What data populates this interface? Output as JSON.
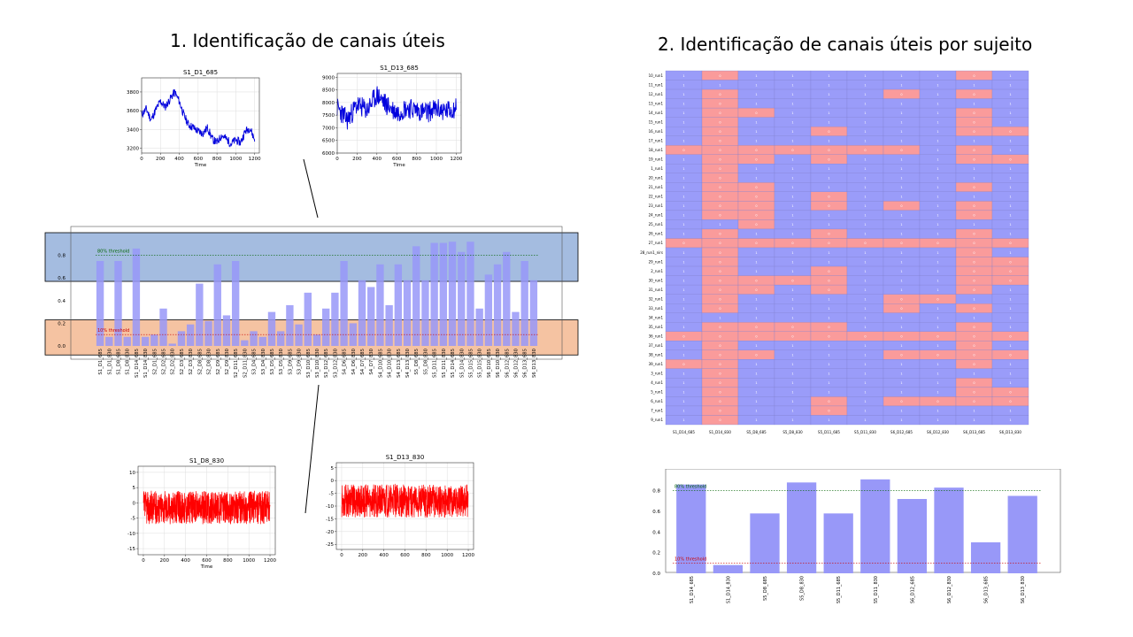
{
  "slide": {
    "left_title": "1. Identificação de canais úteis",
    "right_title": "2. Identificação de canais úteis por sujeito"
  },
  "chart_data": [
    {
      "id": "ts_s1_d1_685",
      "type": "line",
      "title": "S1_D1_685",
      "xlabel": "Time",
      "xlim": [
        0,
        1250
      ],
      "ylim": [
        3150,
        3950
      ],
      "xticks": [
        0,
        200,
        400,
        600,
        800,
        1000,
        1200
      ],
      "yticks": [
        3200,
        3400,
        3600,
        3800
      ],
      "color": "#0000dd",
      "anchors": [
        [
          0,
          3560
        ],
        [
          50,
          3620
        ],
        [
          100,
          3500
        ],
        [
          150,
          3610
        ],
        [
          200,
          3700
        ],
        [
          250,
          3640
        ],
        [
          300,
          3720
        ],
        [
          350,
          3800
        ],
        [
          400,
          3700
        ],
        [
          450,
          3550
        ],
        [
          500,
          3450
        ],
        [
          550,
          3420
        ],
        [
          600,
          3380
        ],
        [
          650,
          3360
        ],
        [
          700,
          3420
        ],
        [
          750,
          3300
        ],
        [
          800,
          3260
        ],
        [
          850,
          3340
        ],
        [
          900,
          3300
        ],
        [
          950,
          3250
        ],
        [
          1000,
          3290
        ],
        [
          1050,
          3260
        ],
        [
          1100,
          3380
        ],
        [
          1150,
          3420
        ],
        [
          1200,
          3290
        ]
      ],
      "noise": 45,
      "points": 300,
      "seed": 11,
      "grid": true
    },
    {
      "id": "ts_s1_d13_685",
      "type": "line",
      "title": "S1_D13_685",
      "xlabel": "Time",
      "xlim": [
        0,
        1250
      ],
      "ylim": [
        6000,
        9150
      ],
      "xticks": [
        0,
        200,
        400,
        600,
        800,
        1000,
        1200
      ],
      "yticks": [
        6000,
        6500,
        7000,
        7500,
        8000,
        8500,
        9000
      ],
      "color": "#0000dd",
      "anchors": [
        [
          0,
          7800
        ],
        [
          100,
          7300
        ],
        [
          200,
          7900
        ],
        [
          300,
          7700
        ],
        [
          400,
          8300
        ],
        [
          500,
          7900
        ],
        [
          600,
          7600
        ],
        [
          700,
          7800
        ],
        [
          800,
          7700
        ],
        [
          900,
          7600
        ],
        [
          1000,
          7750
        ],
        [
          1100,
          7650
        ],
        [
          1200,
          7800
        ]
      ],
      "noise": 420,
      "points": 320,
      "seed": 23,
      "grid": true
    },
    {
      "id": "ts_s1_d8_830",
      "type": "line",
      "title": "S1_D8_830",
      "xlabel": "Time",
      "xlim": [
        -50,
        1250
      ],
      "ylim": [
        -17,
        12
      ],
      "xticks": [
        0,
        200,
        400,
        600,
        800,
        1000,
        1200
      ],
      "yticks": [
        10,
        5,
        0,
        -5,
        -10,
        -15
      ],
      "color": "#ff0000",
      "anchors": [
        [
          0,
          -1.5
        ],
        [
          1200,
          -1.5
        ]
      ],
      "noise": 5.5,
      "points": 900,
      "seed": 37,
      "grid": true
    },
    {
      "id": "ts_s1_d13_830",
      "type": "line",
      "title": "S1_D13_830",
      "xlabel": "",
      "xlim": [
        -50,
        1250
      ],
      "ylim": [
        -27,
        7
      ],
      "xticks": [
        0,
        200,
        400,
        600,
        800,
        1000,
        1200
      ],
      "yticks": [
        5,
        0,
        -5,
        -10,
        -15,
        -20,
        -25
      ],
      "color": "#ff0000",
      "anchors": [
        [
          0,
          -8
        ],
        [
          1200,
          -8
        ]
      ],
      "noise": 6.5,
      "points": 900,
      "seed": 53,
      "grid": true
    },
    {
      "id": "channel_bars",
      "type": "bar",
      "color": "#9898f8",
      "ylim": [
        0,
        1.0
      ],
      "yticks": [
        0.0,
        0.2,
        0.4,
        0.6,
        0.8
      ],
      "thresholds": [
        {
          "label": "80% threshold",
          "value": 0.8,
          "color": "#006400"
        },
        {
          "label": "10% threshold",
          "value": 0.1,
          "color": "#cc0000"
        }
      ],
      "categories": [
        "S1_D1_685",
        "S1_D1_830",
        "S1_D8_685",
        "S1_D8_830",
        "S1_D14_685",
        "S1_D14_830",
        "S2_D1_685",
        "S2_D2_685",
        "S2_D2_830",
        "S2_D3_685",
        "S2_D3_830",
        "S2_D8_685",
        "S2_D8_830",
        "S2_D9_685",
        "S2_D9_830",
        "S2_D11_685",
        "S2_D11_830",
        "S3_D4_685",
        "S3_D4_830",
        "S3_D5_685",
        "S3_D5_830",
        "S3_D9_685",
        "S3_D9_830",
        "S3_D10_685",
        "S3_D10_830",
        "S3_D12_685",
        "S3_D12_830",
        "S4_D6_685",
        "S4_D6_830",
        "S4_D7_685",
        "S4_D7_830",
        "S4_D10_685",
        "S4_D10_830",
        "S4_D13_685",
        "S4_D13_830",
        "S5_D8_685",
        "S5_D8_830",
        "S5_D11_685",
        "S5_D11_830",
        "S5_D14_685",
        "S5_D14_830",
        "S5_D15_685",
        "S5_D15_830",
        "S6_D10_685",
        "S6_D10_830",
        "S6_D12_685",
        "S6_D12_830",
        "S6_D13_685",
        "S6_D13_830"
      ],
      "values": [
        0.75,
        0.08,
        0.75,
        0.08,
        0.86,
        0.08,
        0.1,
        0.33,
        0.02,
        0.13,
        0.19,
        0.55,
        0.22,
        0.72,
        0.27,
        0.75,
        0.05,
        0.13,
        0.08,
        0.3,
        0.13,
        0.36,
        0.19,
        0.47,
        0.1,
        0.33,
        0.47,
        0.75,
        0.2,
        0.58,
        0.52,
        0.72,
        0.36,
        0.72,
        0.58,
        0.88,
        0.58,
        0.91,
        0.91,
        0.92,
        0.83,
        0.92,
        0.33,
        0.63,
        0.72,
        0.83,
        0.3,
        0.75,
        0.58
      ]
    },
    {
      "id": "subject_heatmap",
      "type": "heatmap",
      "colors": {
        "one": "#9a9cf9",
        "zero": "#fa9b9b"
      },
      "rows": [
        "10_run1",
        "11_run1",
        "12_run1",
        "13_run1",
        "14_run1",
        "15_run1",
        "16_run1",
        "17_run1",
        "18_run1",
        "19_run1",
        "1_run1",
        "20_run1",
        "21_run1",
        "22_run1",
        "23_run1",
        "24_run1",
        "25_run1",
        "26_run1",
        "27_run1",
        "28_run1_nirs",
        "29_run1",
        "2_run1",
        "30_run1",
        "31_run1",
        "32_run1",
        "33_run1",
        "34_run1",
        "35_run1",
        "36_run1",
        "37_run1",
        "38_run1",
        "39_run1",
        "3_run1",
        "4_run1",
        "5_run1",
        "6_run1",
        "7_run1",
        "9_run1"
      ],
      "columns": [
        "S1_D14_685",
        "S1_D14_830",
        "S5_D8_685",
        "S5_D8_830",
        "S5_D11_685",
        "S5_D11_830",
        "S6_D12_685",
        "S6_D12_830",
        "S6_D13_685",
        "S6_D13_830"
      ],
      "values": [
        [
          1,
          0,
          1,
          1,
          1,
          1,
          1,
          1,
          0,
          1
        ],
        [
          1,
          1,
          1,
          1,
          1,
          1,
          1,
          1,
          1,
          1
        ],
        [
          1,
          0,
          1,
          1,
          1,
          1,
          0,
          1,
          0,
          1
        ],
        [
          1,
          0,
          1,
          1,
          1,
          1,
          1,
          1,
          1,
          1
        ],
        [
          1,
          0,
          0,
          1,
          1,
          1,
          1,
          1,
          0,
          1
        ],
        [
          1,
          0,
          1,
          1,
          1,
          1,
          1,
          1,
          0,
          1
        ],
        [
          1,
          0,
          1,
          1,
          0,
          1,
          1,
          1,
          0,
          0
        ],
        [
          1,
          0,
          1,
          1,
          1,
          1,
          1,
          1,
          1,
          1
        ],
        [
          0,
          0,
          0,
          0,
          0,
          0,
          0,
          1,
          0,
          1
        ],
        [
          1,
          0,
          0,
          1,
          0,
          1,
          1,
          1,
          0,
          0
        ],
        [
          1,
          0,
          1,
          1,
          1,
          1,
          1,
          1,
          1,
          1
        ],
        [
          1,
          0,
          1,
          1,
          1,
          1,
          1,
          1,
          1,
          1
        ],
        [
          1,
          0,
          0,
          1,
          1,
          1,
          1,
          1,
          0,
          1
        ],
        [
          1,
          0,
          0,
          1,
          0,
          1,
          1,
          1,
          1,
          1
        ],
        [
          1,
          0,
          0,
          1,
          0,
          1,
          0,
          1,
          0,
          1
        ],
        [
          1,
          0,
          0,
          1,
          1,
          1,
          1,
          1,
          0,
          1
        ],
        [
          1,
          1,
          0,
          1,
          1,
          1,
          1,
          1,
          1,
          1
        ],
        [
          1,
          0,
          1,
          1,
          0,
          1,
          1,
          1,
          0,
          1
        ],
        [
          0,
          0,
          0,
          0,
          0,
          0,
          0,
          0,
          0,
          0
        ],
        [
          1,
          0,
          1,
          1,
          1,
          1,
          1,
          1,
          0,
          1
        ],
        [
          1,
          0,
          1,
          1,
          1,
          1,
          1,
          1,
          0,
          0
        ],
        [
          1,
          0,
          1,
          1,
          0,
          1,
          1,
          1,
          0,
          0
        ],
        [
          1,
          0,
          0,
          0,
          0,
          1,
          1,
          1,
          0,
          0
        ],
        [
          1,
          0,
          0,
          1,
          0,
          1,
          1,
          1,
          0,
          1
        ],
        [
          1,
          0,
          1,
          1,
          1,
          1,
          0,
          0,
          1,
          1
        ],
        [
          1,
          0,
          1,
          1,
          1,
          1,
          0,
          1,
          0,
          1
        ],
        [
          1,
          1,
          1,
          1,
          1,
          1,
          1,
          1,
          1,
          1
        ],
        [
          1,
          0,
          0,
          0,
          0,
          1,
          1,
          1,
          0,
          1
        ],
        [
          0,
          0,
          0,
          0,
          0,
          0,
          0,
          0,
          0,
          0
        ],
        [
          1,
          0,
          1,
          1,
          1,
          1,
          1,
          1,
          0,
          1
        ],
        [
          1,
          0,
          0,
          1,
          1,
          1,
          0,
          0,
          0,
          0
        ],
        [
          0,
          0,
          1,
          1,
          1,
          1,
          1,
          1,
          0,
          1
        ],
        [
          1,
          0,
          1,
          1,
          1,
          1,
          1,
          1,
          1,
          1
        ],
        [
          1,
          0,
          1,
          1,
          1,
          1,
          1,
          1,
          0,
          1
        ],
        [
          1,
          0,
          1,
          1,
          1,
          1,
          1,
          1,
          0,
          0
        ],
        [
          1,
          0,
          1,
          1,
          0,
          1,
          0,
          0,
          0,
          0
        ],
        [
          1,
          0,
          1,
          1,
          0,
          1,
          1,
          1,
          1,
          1
        ],
        [
          1,
          0,
          1,
          1,
          1,
          1,
          1,
          1,
          1,
          1
        ]
      ]
    },
    {
      "id": "subject_bars",
      "type": "bar",
      "color": "#9898f8",
      "ylim": [
        0,
        0.96
      ],
      "yticks": [
        0.0,
        0.2,
        0.4,
        0.6,
        0.8
      ],
      "thresholds": [
        {
          "label": "80% threshold",
          "value": 0.8,
          "color": "#006400"
        },
        {
          "label": "10% threshold",
          "value": 0.1,
          "color": "#cc0000"
        }
      ],
      "categories": [
        "S1_D14_685",
        "S1_D14_830",
        "S5_D8_685",
        "S5_D8_830",
        "S5_D11_685",
        "S5_D11_830",
        "S6_D12_685",
        "S6_D12_830",
        "S6_D13_685",
        "S6_D13_830"
      ],
      "values": [
        0.86,
        0.08,
        0.58,
        0.88,
        0.58,
        0.91,
        0.72,
        0.83,
        0.3,
        0.75
      ]
    }
  ]
}
